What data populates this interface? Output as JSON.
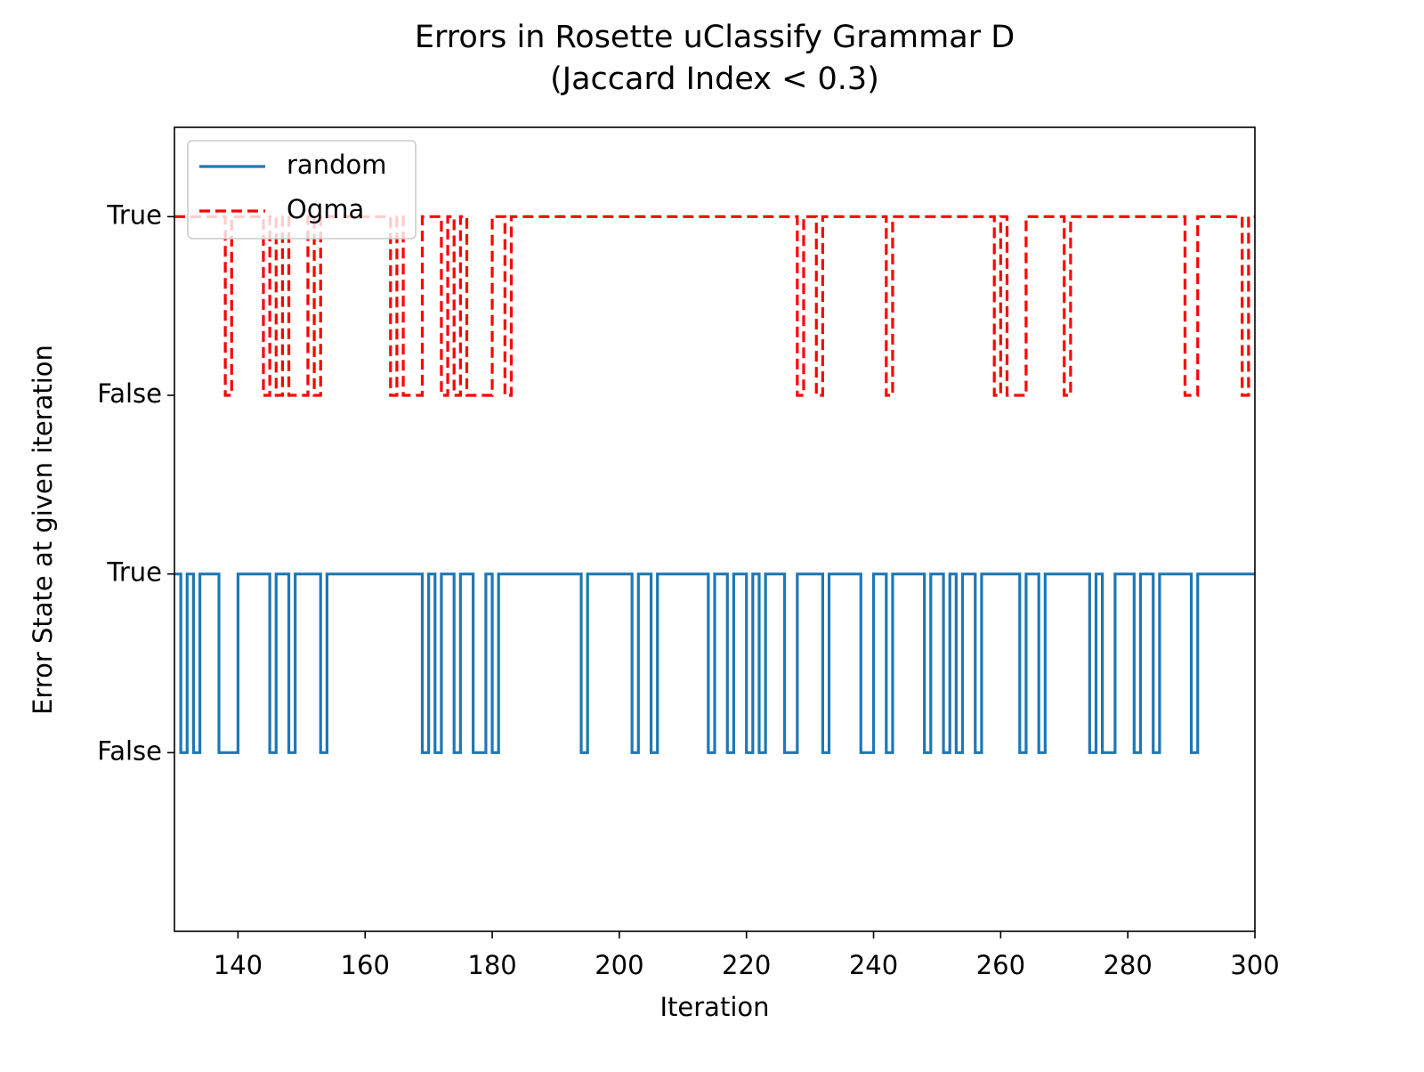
{
  "chart_data": {
    "type": "step",
    "title": [
      "Errors in Rosette uClassify Grammar D",
      "(Jaccard Index < 0.3)"
    ],
    "xlabel": "Iteration",
    "ylabel": "Error State at given iteration",
    "xlim": [
      130,
      300
    ],
    "xticks": [
      140,
      160,
      180,
      200,
      220,
      240,
      260,
      280,
      300
    ],
    "ylim": [
      -1,
      3.5
    ],
    "yticks": [
      {
        "value": 0,
        "label": "False"
      },
      {
        "value": 1,
        "label": "True"
      },
      {
        "value": 2,
        "label": "False"
      },
      {
        "value": 3,
        "label": "True"
      }
    ],
    "legend": "upper-left",
    "series": [
      {
        "name": "random",
        "color": "#1f77b4",
        "dash": false,
        "x": [
          130,
          131,
          132,
          133,
          134,
          137,
          140,
          145,
          146,
          148,
          149,
          153,
          154,
          169,
          170,
          171,
          172,
          174,
          175,
          177,
          179,
          180,
          181,
          194,
          195,
          202,
          203,
          205,
          206,
          214,
          215,
          217,
          218,
          220,
          221,
          222,
          223,
          226,
          228,
          232,
          233,
          238,
          240,
          242,
          243,
          248,
          249,
          251,
          252,
          253,
          254,
          256,
          257,
          263,
          264,
          266,
          267,
          274,
          275,
          276,
          278,
          281,
          282,
          284,
          285,
          290,
          291,
          300
        ],
        "values": [
          1,
          0,
          1,
          0,
          1,
          0,
          1,
          0,
          1,
          0,
          1,
          0,
          1,
          0,
          1,
          0,
          1,
          0,
          1,
          0,
          1,
          0,
          1,
          0,
          1,
          0,
          1,
          0,
          1,
          0,
          1,
          0,
          1,
          0,
          1,
          0,
          1,
          0,
          1,
          0,
          1,
          0,
          1,
          0,
          1,
          0,
          1,
          0,
          1,
          0,
          1,
          0,
          1,
          0,
          1,
          0,
          1,
          0,
          1,
          0,
          1,
          0,
          1,
          0,
          1,
          0,
          1,
          1
        ]
      },
      {
        "name": "Ogma",
        "color": "#ff0000",
        "dash": true,
        "x": [
          130,
          138,
          139,
          144,
          145,
          146,
          147,
          148,
          151,
          152,
          153,
          164,
          165,
          166,
          169,
          172,
          173,
          174,
          175,
          176,
          180,
          182,
          183,
          228,
          229,
          231,
          232,
          242,
          243,
          259,
          260,
          261,
          264,
          270,
          271,
          289,
          291,
          298,
          299,
          300
        ],
        "values": [
          3,
          2,
          3,
          2,
          3,
          2,
          3,
          2,
          3,
          2,
          3,
          2,
          3,
          2,
          3,
          2,
          3,
          2,
          3,
          2,
          3,
          2,
          3,
          2,
          3,
          2,
          3,
          2,
          3,
          2,
          3,
          2,
          3,
          2,
          3,
          2,
          3,
          2,
          3,
          3
        ]
      }
    ]
  }
}
